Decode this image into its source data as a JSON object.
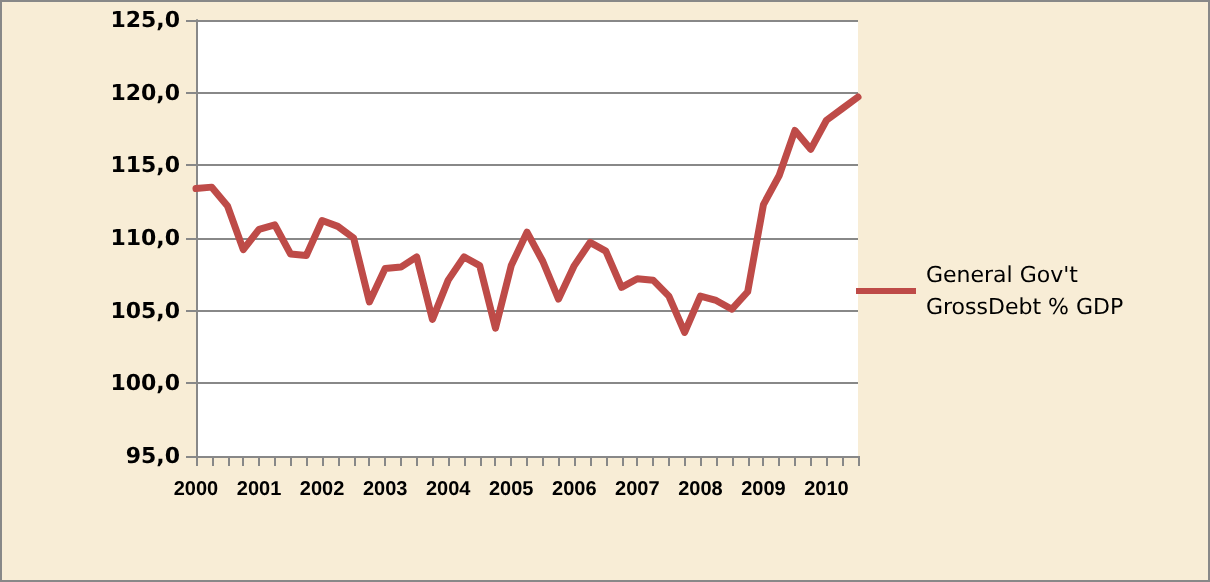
{
  "chart_data": {
    "type": "line",
    "categories": [
      "2000",
      null,
      null,
      null,
      "2001",
      null,
      null,
      null,
      "2002",
      null,
      null,
      null,
      "2003",
      null,
      null,
      null,
      "2004",
      null,
      null,
      null,
      "2005",
      null,
      null,
      null,
      "2006",
      null,
      null,
      null,
      "2007",
      null,
      null,
      null,
      "2008",
      null,
      null,
      null,
      "2009",
      null,
      null,
      null,
      "2010",
      null,
      null
    ],
    "series": [
      {
        "name": "General Gov't GrossDebt % GDP",
        "color": "#be4b48",
        "values": [
          113.4,
          113.5,
          112.2,
          109.2,
          110.6,
          110.9,
          108.9,
          108.8,
          111.2,
          110.8,
          110.0,
          105.6,
          107.9,
          108.0,
          108.7,
          104.4,
          107.1,
          108.7,
          108.1,
          103.8,
          108.1,
          110.4,
          108.4,
          105.8,
          108.1,
          109.7,
          109.1,
          106.6,
          107.2,
          107.1,
          106.0,
          103.5,
          106.0,
          105.7,
          105.1,
          106.3,
          112.3,
          114.3,
          117.4,
          116.1,
          118.1,
          118.9,
          119.7
        ]
      }
    ],
    "ylim": [
      95,
      125
    ],
    "yticks": [
      {
        "value": 95,
        "label": "95,0"
      },
      {
        "value": 100,
        "label": "100,0"
      },
      {
        "value": 105,
        "label": "105,0"
      },
      {
        "value": 110,
        "label": "110,0"
      },
      {
        "value": 115,
        "label": "115,0"
      },
      {
        "value": 120,
        "label": "120,0"
      },
      {
        "value": 125,
        "label": "125,0"
      }
    ],
    "grid": "y",
    "legend": "right",
    "marker": "none",
    "line_style": "solid"
  }
}
